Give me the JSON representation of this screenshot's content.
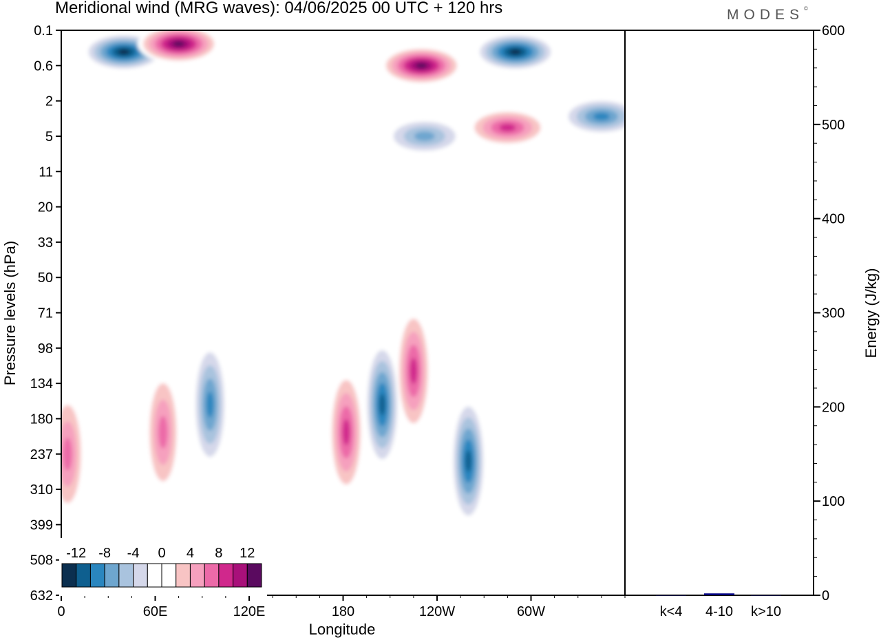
{
  "title": "Meridional wind (MRG waves):  04/06/2025  00 UTC  + 120 hrs",
  "logo": "MODES",
  "logo_mark": "©",
  "chart_data": [
    {
      "type": "heatmap",
      "variable": "Meridional wind (MRG waves)",
      "xlabel": "Longitude",
      "ylabel": "Pressure levels (hPa)",
      "x_ticks": [
        "0",
        "60E",
        "120E",
        "180",
        "120W",
        "60W"
      ],
      "x_tick_values": [
        0,
        60,
        120,
        180,
        240,
        300
      ],
      "xlim": [
        0,
        360
      ],
      "y_ticks": [
        "0.1",
        "0.6",
        "2",
        "5",
        "11",
        "20",
        "33",
        "50",
        "71",
        "98",
        "134",
        "180",
        "237",
        "310",
        "399",
        "508",
        "632"
      ],
      "y_scale": "model levels (nonlinear, top = 0.1 hPa)",
      "colorbar": {
        "labels": [
          "-12",
          "-8",
          "-4",
          "0",
          "4",
          "8",
          "12"
        ],
        "levels": [
          -14,
          -12,
          -10,
          -8,
          -6,
          -4,
          -2,
          2,
          4,
          6,
          8,
          10,
          12,
          14
        ],
        "colors": [
          "#0b2f4f",
          "#0e5f8f",
          "#2a86bf",
          "#6ea6cf",
          "#a9c3de",
          "#d5d8ea",
          "#ffffff",
          "#ffffff",
          "#f8c4c4",
          "#f6a0be",
          "#ec6aa8",
          "#d0288c",
          "#a8107a",
          "#5a0a5f"
        ],
        "placement": "bottom-left"
      },
      "features": [
        {
          "lon": 40,
          "level": "0.3",
          "value": -14
        },
        {
          "lon": 75,
          "level": "0.2",
          "value": 14
        },
        {
          "lon": 230,
          "level": "0.6",
          "value": 14
        },
        {
          "lon": 290,
          "level": "0.3",
          "value": -14
        },
        {
          "lon": 345,
          "level": "3",
          "value": -10
        },
        {
          "lon": 285,
          "level": "4",
          "value": 10
        },
        {
          "lon": 232,
          "level": "5",
          "value": -8
        },
        {
          "lon": 95,
          "level": "160",
          "value": -10
        },
        {
          "lon": 65,
          "level": "200",
          "value": 8
        },
        {
          "lon": 182,
          "level": "200",
          "value": 10
        },
        {
          "lon": 205,
          "level": "160",
          "value": -12
        },
        {
          "lon": 225,
          "level": "120",
          "value": 10
        },
        {
          "lon": 260,
          "level": "250",
          "value": -12
        },
        {
          "lon": 4,
          "level": "237",
          "value": 8
        }
      ]
    },
    {
      "type": "bar",
      "categories": [
        "k<4",
        "4-10",
        "k>10"
      ],
      "values": [
        0,
        2,
        0
      ],
      "ylabel": "Energy (J/kg)",
      "ylim": [
        0,
        600
      ],
      "y_ticks": [
        "0",
        "100",
        "200",
        "300",
        "400",
        "500",
        "600"
      ],
      "bar_color": "#000080"
    }
  ]
}
